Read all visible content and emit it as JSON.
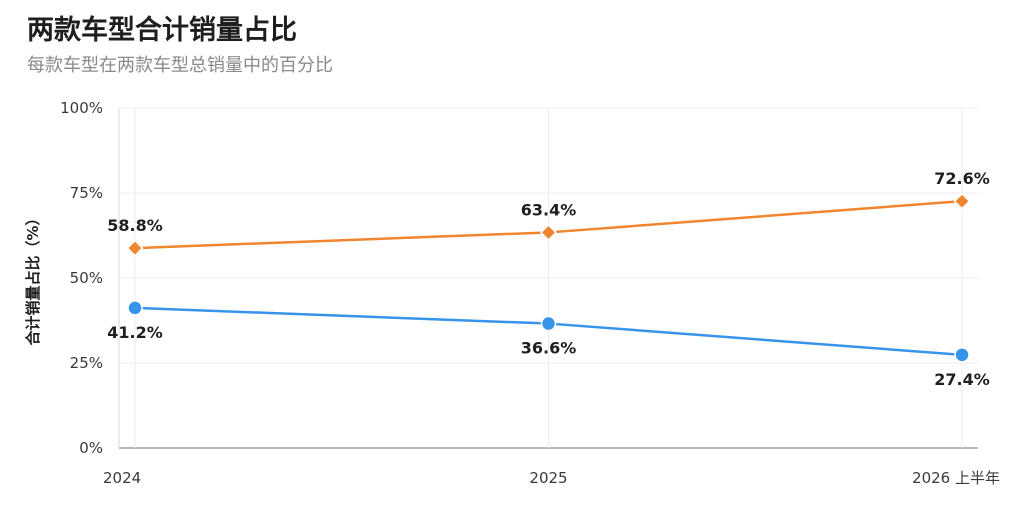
{
  "title": "两款车型合计销量占比",
  "subtitle": "每款车型在两款车型总销量中的百分比",
  "chart_data": {
    "type": "line",
    "title": "两款车型合计销量占比",
    "subtitle": "每款车型在两款车型总销量中的百分比",
    "xlabel": "",
    "ylabel": "合计销量占比（%）",
    "categories": [
      "2024",
      "2025",
      "2026 上半年"
    ],
    "ylim": [
      0,
      100
    ],
    "yticks": [
      0,
      25,
      50,
      75,
      100
    ],
    "ytick_labels": [
      "0%",
      "25%",
      "50%",
      "75%",
      "100%"
    ],
    "grid": true,
    "legend": "none",
    "series": [
      {
        "values": [
          58.8,
          63.4,
          72.6
        ],
        "labels": [
          "58.8%",
          "63.4%",
          "72.6%"
        ],
        "color": "#f0862e",
        "marker": "diamond",
        "label_position": "above"
      },
      {
        "values": [
          41.2,
          36.6,
          27.4
        ],
        "labels": [
          "41.2%",
          "36.6%",
          "27.4%"
        ],
        "color": "#3894eb",
        "marker": "circle",
        "label_position": "below"
      }
    ]
  }
}
